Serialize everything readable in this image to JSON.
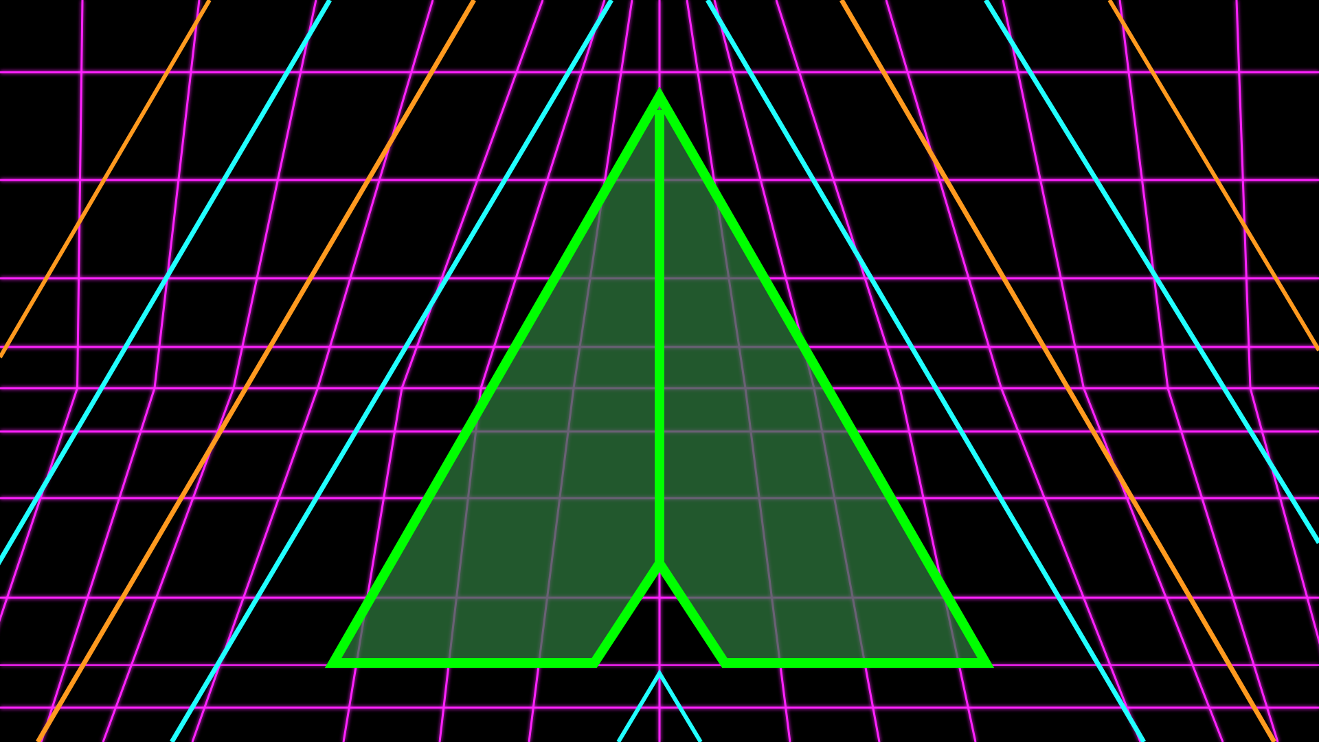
{
  "scene": {
    "name": "vector-grid-ship-scene",
    "colors": {
      "background": "#000000",
      "grid": "#ff22ff",
      "grid_glow": "#ff00ff",
      "rail_cyan": "#22ffff",
      "rail_orange": "#ff9a1f",
      "ship_outline": "#00ff00",
      "ship_fill": "#2f7a3f",
      "marker_cyan": "#22ffff"
    },
    "icons": {
      "ship": "player-ship-icon",
      "marker": "chevron-up-marker-icon"
    }
  }
}
